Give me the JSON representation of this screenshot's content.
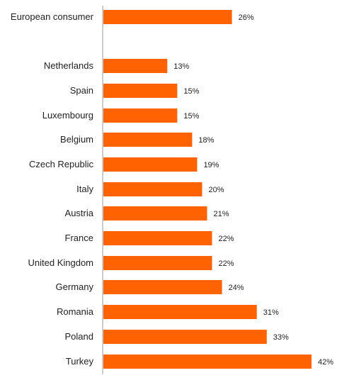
{
  "chart_data": {
    "type": "bar",
    "orientation": "horizontal",
    "bar_color": "#FF6200",
    "axis_color": "#999999",
    "value_suffix": "%",
    "categories": [
      "European consumer",
      "Netherlands",
      "Spain",
      "Luxembourg",
      "Belgium",
      "Czech Republic",
      "Italy",
      "Austria",
      "France",
      "United Kingdom",
      "Germany",
      "Romania",
      "Poland",
      "Turkey"
    ],
    "values": [
      26,
      13,
      15,
      15,
      18,
      19,
      20,
      21,
      22,
      22,
      24,
      31,
      33,
      42
    ],
    "value_labels": [
      "26%",
      "13%",
      "15%",
      "15%",
      "18%",
      "19%",
      "20%",
      "21%",
      "22%",
      "22%",
      "24%",
      "31%",
      "33%",
      "42%"
    ],
    "xlim": [
      0,
      42
    ],
    "grid": false,
    "legend": "none",
    "title": "",
    "xlabel": "",
    "ylabel": ""
  }
}
